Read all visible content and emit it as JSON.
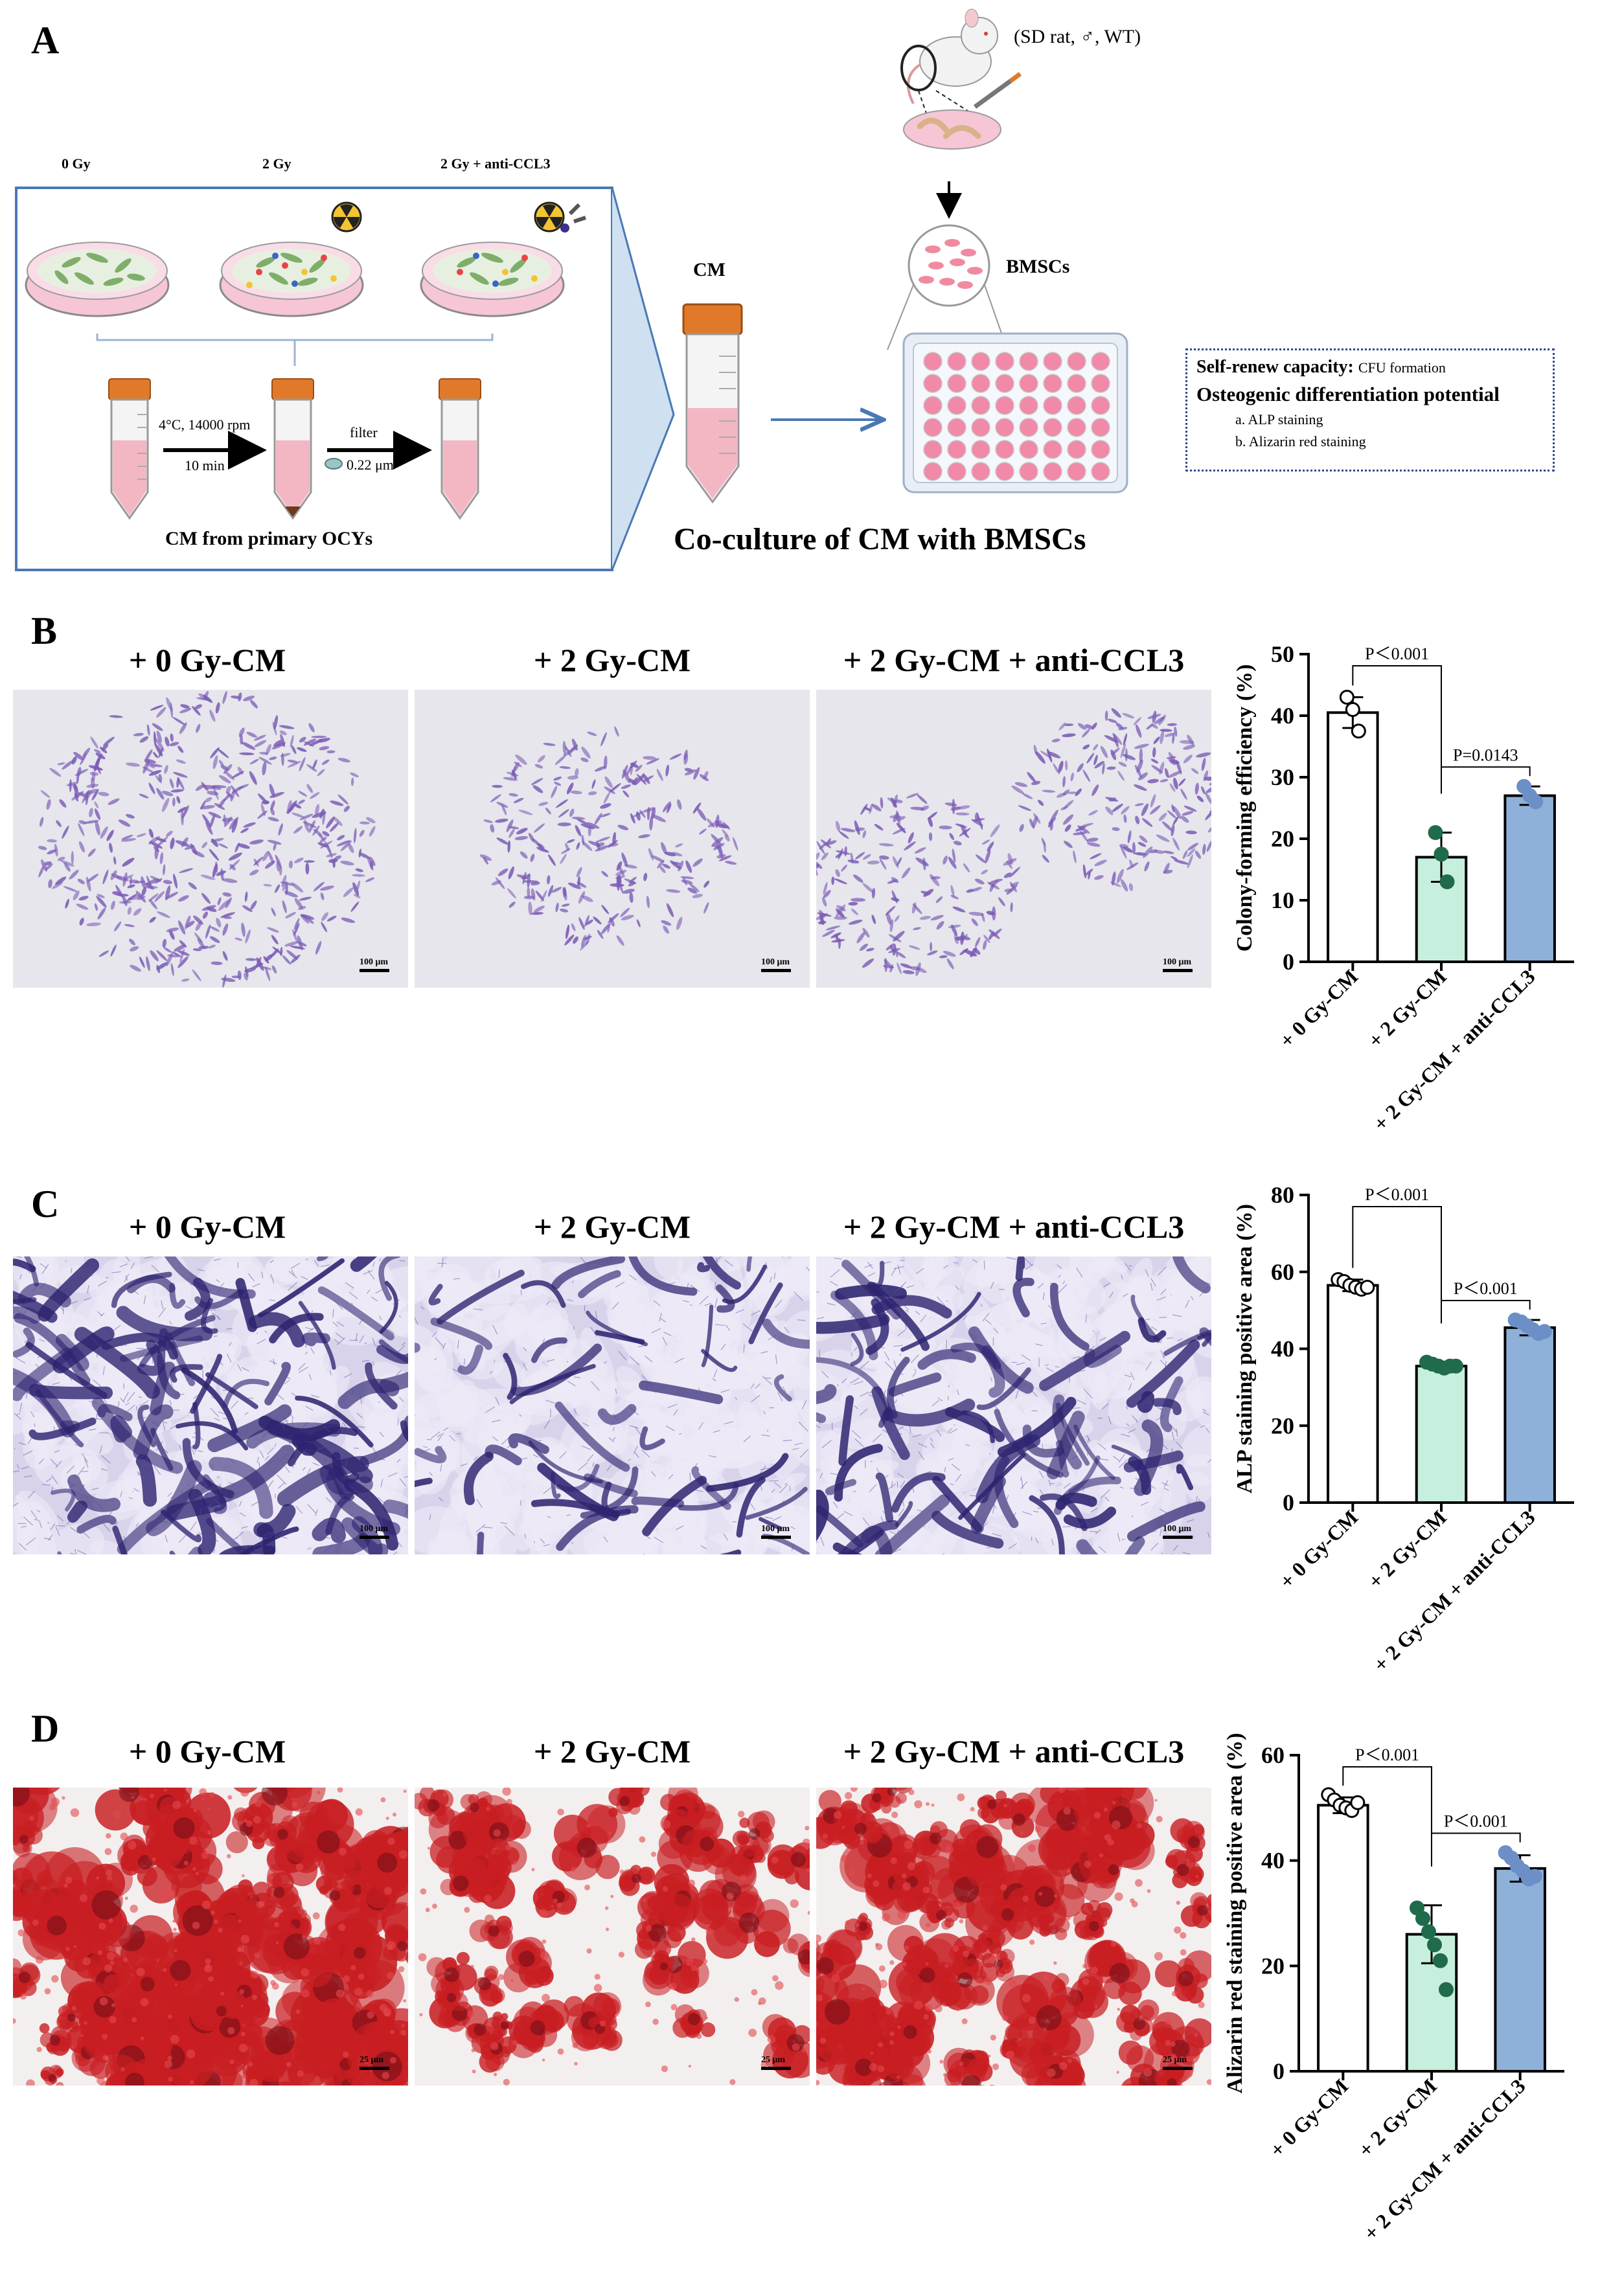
{
  "panels": {
    "A": {
      "letter": "A",
      "conditions": [
        "0 Gy",
        "2 Gy",
        "2 Gy + anti-CCL3"
      ],
      "centrifuge_label": "4°C, 14000 rpm",
      "centrifuge_time": "10 min",
      "filter_label": "filter",
      "filter_size": "0.22 μm",
      "cm_source_caption": "CM from primary OCYs",
      "cm_label": "CM",
      "rat_label": "(SD rat, ♂, WT)",
      "bmsc_label": "BMSCs",
      "coculture_caption": "Co-culture of CM with BMSCs",
      "assays": {
        "self_renew_title": "Self-renew capacity:",
        "self_renew_detail": "CFU formation",
        "osteo_title": "Osteogenic differentiation potential",
        "osteo_a": "a. ALP staining",
        "osteo_b": "b. Alizarin red staining"
      }
    },
    "B": {
      "letter": "B",
      "titles": [
        "+ 0 Gy-CM",
        "+ 2 Gy-CM",
        "+ 2 Gy-CM + anti-CCL3"
      ],
      "scale_labels": [
        "100 μm",
        "100 μm",
        "100 μm"
      ]
    },
    "C": {
      "letter": "C",
      "titles": [
        "+ 0 Gy-CM",
        "+ 2 Gy-CM",
        "+ 2 Gy-CM + anti-CCL3"
      ],
      "scale_labels": [
        "100 μm",
        "100 μm",
        "100 μm"
      ]
    },
    "D": {
      "letter": "D",
      "titles": [
        "+ 0 Gy-CM",
        "+ 2 Gy-CM",
        "+ 2 Gy-CM + anti-CCL3"
      ],
      "scale_labels": [
        "25 μm",
        "25 μm",
        "25 μm"
      ]
    }
  },
  "colors": {
    "bar_0gy": "#ffffff",
    "bar_2gy": "#c7efdd",
    "bar_anti": "#8fb0d8",
    "dots_2gy": "#1f6b4c",
    "dots_anti": "#6b8fc6",
    "scheme_border": "#4a78b4",
    "cfu_stain": "#7b5bb6",
    "alp_stain": "#2d2470",
    "alizarin_stain": "#c81e22"
  },
  "chart_data": [
    {
      "type": "bar",
      "panel": "B",
      "ylabel": "Colony-forming efficiency (%)",
      "categories": [
        "+ 0 Gy-CM",
        "+ 2 Gy-CM",
        "+ 2 Gy-CM + anti-CCL3"
      ],
      "values": [
        40.5,
        17,
        27
      ],
      "errors": [
        2.5,
        4,
        1.5
      ],
      "points": [
        [
          43,
          41,
          37.5
        ],
        [
          21,
          17.5,
          13
        ],
        [
          28.5,
          27,
          26
        ]
      ],
      "ylim": [
        0,
        50
      ],
      "yticks": [
        0,
        10,
        20,
        30,
        40,
        50
      ],
      "annotations": [
        {
          "text": "P＜0.001",
          "from": 0,
          "to": 1
        },
        {
          "text": "P=0.0143",
          "from": 1,
          "to": 2
        }
      ]
    },
    {
      "type": "bar",
      "panel": "C",
      "ylabel": "ALP staining positive area (%)",
      "categories": [
        "+ 0 Gy-CM",
        "+ 2 Gy-CM",
        "+ 2 Gy-CM + anti-CCL3"
      ],
      "values": [
        56.5,
        35.5,
        45.5
      ],
      "errors": [
        1.5,
        1,
        2
      ],
      "points": [
        [
          58,
          57.5,
          56.5,
          56,
          55.5,
          56
        ],
        [
          36.5,
          36,
          35.5,
          35,
          35.5,
          35.5
        ],
        [
          47.5,
          47,
          46,
          45,
          44,
          44.5
        ]
      ],
      "ylim": [
        0,
        80
      ],
      "yticks": [
        0,
        20,
        40,
        60,
        80
      ],
      "annotations": [
        {
          "text": "P＜0.001",
          "from": 0,
          "to": 1
        },
        {
          "text": "P＜0.001",
          "from": 1,
          "to": 2
        }
      ]
    },
    {
      "type": "bar",
      "panel": "D",
      "ylabel": "Alizarin red staining positive area (%)",
      "categories": [
        "+ 0 Gy-CM",
        "+ 2 Gy-CM",
        "+ 2 Gy-CM + anti-CCL3"
      ],
      "values": [
        50.5,
        26,
        38.5
      ],
      "errors": [
        1.5,
        5.5,
        2.5
      ],
      "points": [
        [
          52.5,
          51.5,
          50.5,
          50,
          49.5,
          51
        ],
        [
          31,
          29,
          26.5,
          24,
          21,
          15.5
        ],
        [
          41.5,
          40.5,
          39,
          38,
          36.5,
          37
        ]
      ],
      "ylim": [
        0,
        60
      ],
      "yticks": [
        0,
        20,
        40,
        60
      ],
      "annotations": [
        {
          "text": "P＜0.001",
          "from": 0,
          "to": 1
        },
        {
          "text": "P＜0.001",
          "from": 1,
          "to": 2
        }
      ]
    }
  ]
}
